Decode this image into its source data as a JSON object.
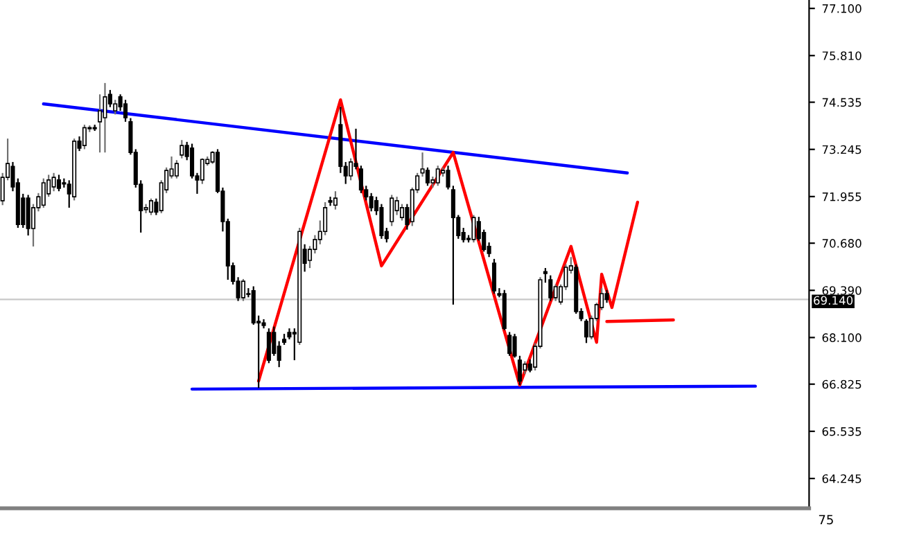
{
  "chart_data": [
    {
      "type": "candlestick",
      "categories": [
        null,
        null,
        null,
        null,
        null,
        null,
        null,
        null,
        null,
        null,
        null,
        null,
        null,
        null,
        null,
        null,
        null,
        null,
        null,
        null,
        null,
        null,
        null,
        null,
        null,
        null,
        null,
        null,
        null,
        null,
        null,
        null,
        null,
        null,
        null,
        null,
        null,
        null,
        null,
        null,
        null,
        null,
        null,
        null,
        null,
        null,
        null,
        null,
        null,
        null,
        null,
        null,
        null,
        null,
        null,
        null,
        null,
        null,
        null,
        null,
        null,
        null,
        null,
        null,
        null,
        null,
        null,
        null,
        null,
        null,
        null,
        null,
        null,
        null,
        null,
        null,
        null,
        null,
        null,
        null,
        null,
        null,
        null,
        null,
        null,
        null,
        null,
        null,
        null,
        null,
        null,
        null,
        null,
        null,
        null,
        null,
        null,
        null,
        null,
        null,
        null,
        null,
        null,
        null,
        null,
        null,
        null,
        null,
        null,
        null,
        null,
        null,
        null,
        null,
        null,
        null,
        null,
        null,
        null,
        null,
        null,
        null,
        null,
        null,
        null,
        null,
        null,
        null,
        null,
        null,
        null,
        null,
        null,
        null,
        null,
        null,
        null,
        null,
        null,
        null,
        null,
        null,
        null,
        null,
        null,
        null,
        null,
        null,
        null,
        null,
        null,
        null,
        null,
        null,
        null,
        null,
        null,
        null
      ],
      "ohlc": [
        [
          71.84,
          72.6,
          71.72,
          72.48
        ],
        [
          72.48,
          73.54,
          72.4,
          72.86
        ],
        [
          72.78,
          72.9,
          72.1,
          72.22
        ],
        [
          72.33,
          72.45,
          71.1,
          71.19
        ],
        [
          71.91,
          72.03,
          71.1,
          71.19
        ],
        [
          71.91,
          72.0,
          70.89,
          71.08
        ],
        [
          71.08,
          71.75,
          70.59,
          71.65
        ],
        [
          71.65,
          72.05,
          71.55,
          71.95
        ],
        [
          71.72,
          72.45,
          71.65,
          72.33
        ],
        [
          72.03,
          72.55,
          71.95,
          72.41
        ],
        [
          72.22,
          72.6,
          72.1,
          72.48
        ],
        [
          72.41,
          72.55,
          72.1,
          72.18
        ],
        [
          72.33,
          72.45,
          72.2,
          72.3
        ],
        [
          72.29,
          72.4,
          71.65,
          72.03
        ],
        [
          71.95,
          73.54,
          71.85,
          73.47
        ],
        [
          73.47,
          73.6,
          73.2,
          73.28
        ],
        [
          73.35,
          73.92,
          73.25,
          73.84
        ],
        [
          73.81,
          73.9,
          73.72,
          73.84
        ],
        [
          73.84,
          73.92,
          73.75,
          73.81
        ],
        [
          74.0,
          74.75,
          73.16,
          74.3
        ],
        [
          74.11,
          75.06,
          73.16,
          74.68
        ],
        [
          74.75,
          74.87,
          74.4,
          74.49
        ],
        [
          74.3,
          74.6,
          74.2,
          74.49
        ],
        [
          74.68,
          74.75,
          74.3,
          74.41
        ],
        [
          74.49,
          74.6,
          74.0,
          74.11
        ],
        [
          74.0,
          74.1,
          73.1,
          73.16
        ],
        [
          73.16,
          73.25,
          72.2,
          72.29
        ],
        [
          72.29,
          72.4,
          70.97,
          71.57
        ],
        [
          71.6,
          71.75,
          71.5,
          71.65
        ],
        [
          71.53,
          71.9,
          71.45,
          71.84
        ],
        [
          71.8,
          71.9,
          71.45,
          71.53
        ],
        [
          71.57,
          72.4,
          71.5,
          72.33
        ],
        [
          72.14,
          72.75,
          72.05,
          72.67
        ],
        [
          72.52,
          73.05,
          72.45,
          72.71
        ],
        [
          72.52,
          72.95,
          72.45,
          72.86
        ],
        [
          73.09,
          73.5,
          73.0,
          73.35
        ],
        [
          73.35,
          73.45,
          72.95,
          73.05
        ],
        [
          73.28,
          73.4,
          72.45,
          72.52
        ],
        [
          72.52,
          72.6,
          72.03,
          72.41
        ],
        [
          72.41,
          73.0,
          72.3,
          72.97
        ],
        [
          72.86,
          73.05,
          72.8,
          72.97
        ],
        [
          72.9,
          73.2,
          72.85,
          73.16
        ],
        [
          73.16,
          73.25,
          72.05,
          72.1
        ],
        [
          72.1,
          72.2,
          71.0,
          71.27
        ],
        [
          71.27,
          71.35,
          69.68,
          70.06
        ],
        [
          70.06,
          70.15,
          69.55,
          69.64
        ],
        [
          69.64,
          69.75,
          69.1,
          69.19
        ],
        [
          69.19,
          69.7,
          69.1,
          69.64
        ],
        [
          69.3,
          69.45,
          69.2,
          69.28
        ],
        [
          69.38,
          69.5,
          68.45,
          68.5
        ],
        [
          68.54,
          68.7,
          66.72,
          68.5
        ],
        [
          68.5,
          68.6,
          68.35,
          68.43
        ],
        [
          68.24,
          68.35,
          67.4,
          67.48
        ],
        [
          68.24,
          68.4,
          67.6,
          67.67
        ],
        [
          67.86,
          68.0,
          67.29,
          67.48
        ],
        [
          68.05,
          68.2,
          67.9,
          67.97
        ],
        [
          68.24,
          68.35,
          68.05,
          68.12
        ],
        [
          68.24,
          68.35,
          67.48,
          68.2
        ],
        [
          67.97,
          71.1,
          67.9,
          71.0
        ],
        [
          70.51,
          70.65,
          69.9,
          70.13
        ],
        [
          70.21,
          70.6,
          70.0,
          70.51
        ],
        [
          70.51,
          70.9,
          70.4,
          70.78
        ],
        [
          70.78,
          71.3,
          70.65,
          71.0
        ],
        [
          71.0,
          71.8,
          70.9,
          71.65
        ],
        [
          71.84,
          71.95,
          71.7,
          71.8
        ],
        [
          71.72,
          72.1,
          71.6,
          71.91
        ],
        [
          73.92,
          74.41,
          72.6,
          72.78
        ],
        [
          72.78,
          72.9,
          72.3,
          72.52
        ],
        [
          72.52,
          73.0,
          72.4,
          72.9
        ],
        [
          72.86,
          73.81,
          72.7,
          72.78
        ],
        [
          72.71,
          72.8,
          72.05,
          72.14
        ],
        [
          72.14,
          72.25,
          71.85,
          71.95
        ],
        [
          71.95,
          72.05,
          71.55,
          71.65
        ],
        [
          71.84,
          71.95,
          71.45,
          71.57
        ],
        [
          71.65,
          71.75,
          70.8,
          70.89
        ],
        [
          71.0,
          71.1,
          70.7,
          70.81
        ],
        [
          71.27,
          72.0,
          71.15,
          71.91
        ],
        [
          71.57,
          71.95,
          71.45,
          71.84
        ],
        [
          71.38,
          71.75,
          71.3,
          71.65
        ],
        [
          71.65,
          71.75,
          71.05,
          71.19
        ],
        [
          71.27,
          72.2,
          71.15,
          72.14
        ],
        [
          72.14,
          72.6,
          72.05,
          72.52
        ],
        [
          72.6,
          73.16,
          72.5,
          72.71
        ],
        [
          72.67,
          72.75,
          72.25,
          72.33
        ],
        [
          72.33,
          72.5,
          72.2,
          72.41
        ],
        [
          72.33,
          72.8,
          72.25,
          72.71
        ],
        [
          72.6,
          72.75,
          72.5,
          72.67
        ],
        [
          72.67,
          72.8,
          72.15,
          72.22
        ],
        [
          72.14,
          72.25,
          69.0,
          71.38
        ],
        [
          71.38,
          71.45,
          70.8,
          70.89
        ],
        [
          70.97,
          71.1,
          70.7,
          70.78
        ],
        [
          70.81,
          70.9,
          70.7,
          70.78
        ],
        [
          70.78,
          71.45,
          70.7,
          71.38
        ],
        [
          71.27,
          71.4,
          70.75,
          70.81
        ],
        [
          70.97,
          71.05,
          70.45,
          70.51
        ],
        [
          70.59,
          70.7,
          70.3,
          70.4
        ],
        [
          70.13,
          70.25,
          69.3,
          69.38
        ],
        [
          69.3,
          69.45,
          69.2,
          69.26
        ],
        [
          69.3,
          69.4,
          68.3,
          68.35
        ],
        [
          68.16,
          68.25,
          67.6,
          67.67
        ],
        [
          68.12,
          68.2,
          67.55,
          67.6
        ],
        [
          67.48,
          67.6,
          66.8,
          66.91
        ],
        [
          67.21,
          67.45,
          67.1,
          67.37
        ],
        [
          67.37,
          67.5,
          67.15,
          67.21
        ],
        [
          67.29,
          67.95,
          67.2,
          67.86
        ],
        [
          67.86,
          69.75,
          67.8,
          69.68
        ],
        [
          69.9,
          70.0,
          69.6,
          69.85
        ],
        [
          69.68,
          69.8,
          69.1,
          69.19
        ],
        [
          69.19,
          69.55,
          69.1,
          69.49
        ],
        [
          69.07,
          69.55,
          69.0,
          69.49
        ],
        [
          69.49,
          70.1,
          69.4,
          70.02
        ],
        [
          69.94,
          70.3,
          69.85,
          70.06
        ],
        [
          70.02,
          70.1,
          68.75,
          68.81
        ],
        [
          68.81,
          68.9,
          68.55,
          68.62
        ],
        [
          68.54,
          68.6,
          67.95,
          68.12
        ],
        [
          68.12,
          68.7,
          68.05,
          68.62
        ],
        [
          68.62,
          69.05,
          68.55,
          69.0
        ],
        [
          68.92,
          69.45,
          68.85,
          69.3
        ],
        [
          69.3,
          69.4,
          69.05,
          69.14
        ],
        null,
        null,
        null,
        null,
        null,
        null,
        null,
        null,
        null,
        null,
        null,
        null,
        null,
        null,
        null,
        null,
        null,
        null,
        null,
        null,
        null,
        null,
        null,
        null,
        null,
        null,
        null,
        null,
        null,
        null,
        null,
        null,
        null,
        null,
        null,
        null,
        null,
        null,
        null
      ],
      "series": [
        {
          "type": "line",
          "color": "#0000ff",
          "values": [
            null,
            null,
            null,
            null,
            null,
            null,
            null,
            null,
            74.49,
            null,
            null,
            null,
            null,
            null,
            null,
            null,
            null,
            null,
            null,
            null,
            null,
            null,
            null,
            null,
            null,
            null,
            null,
            null,
            null,
            null,
            null,
            null,
            null,
            null,
            null,
            null,
            null,
            null,
            null,
            null,
            null,
            null,
            null,
            null,
            null,
            null,
            null,
            null,
            null,
            null,
            null,
            null,
            null,
            null,
            null,
            null,
            null,
            null,
            null,
            null,
            null,
            null,
            null,
            null,
            null,
            null,
            null,
            null,
            null,
            null,
            null,
            null,
            null,
            null,
            null,
            null,
            null,
            null,
            null,
            null,
            null,
            null,
            null,
            null,
            null,
            null,
            null,
            null,
            null,
            null,
            null,
            null,
            null,
            null,
            null,
            null,
            null,
            null,
            null,
            null,
            null,
            null,
            null,
            null,
            null,
            null,
            null,
            null,
            null,
            null,
            null,
            null,
            null,
            null,
            null,
            null,
            null,
            null,
            null,
            null,
            null,
            null,
            72.6,
            null,
            null,
            null,
            null,
            null,
            null,
            null,
            null,
            null,
            null,
            null,
            null,
            null,
            null,
            null,
            null,
            null,
            null,
            null,
            null,
            null,
            null,
            null,
            null,
            null,
            null,
            null,
            null,
            null,
            null,
            null,
            null,
            null,
            null,
            null
          ]
        },
        {
          "type": "line",
          "color": "#0000ff",
          "values": [
            null,
            null,
            null,
            null,
            null,
            null,
            null,
            null,
            null,
            null,
            null,
            null,
            null,
            null,
            null,
            null,
            null,
            null,
            null,
            null,
            null,
            null,
            null,
            null,
            null,
            null,
            null,
            null,
            null,
            null,
            null,
            null,
            null,
            null,
            null,
            null,
            null,
            66.69,
            null,
            null,
            null,
            null,
            null,
            null,
            null,
            null,
            null,
            null,
            null,
            null,
            null,
            null,
            null,
            null,
            null,
            null,
            null,
            null,
            null,
            null,
            null,
            null,
            null,
            null,
            null,
            null,
            null,
            null,
            null,
            null,
            null,
            null,
            null,
            null,
            null,
            null,
            null,
            null,
            null,
            null,
            null,
            null,
            null,
            null,
            null,
            null,
            null,
            null,
            null,
            null,
            null,
            null,
            null,
            null,
            null,
            null,
            null,
            null,
            null,
            null,
            null,
            null,
            null,
            null,
            null,
            null,
            null,
            null,
            null,
            null,
            null,
            null,
            null,
            null,
            null,
            null,
            null,
            null,
            null,
            null,
            null,
            null,
            null,
            null,
            null,
            null,
            null,
            null,
            null,
            null,
            null,
            null,
            null,
            null,
            null,
            null,
            null,
            null,
            null,
            null,
            null,
            null,
            null,
            null,
            null,
            null,
            null,
            66.77,
            null,
            null,
            null,
            null,
            null,
            null,
            null,
            null,
            null,
            null
          ]
        },
        {
          "type": "line",
          "color": "#ff0000",
          "values": [
            null,
            null,
            null,
            null,
            null,
            null,
            null,
            null,
            null,
            null,
            null,
            null,
            null,
            null,
            null,
            null,
            null,
            null,
            null,
            null,
            null,
            null,
            null,
            null,
            null,
            null,
            null,
            null,
            null,
            null,
            null,
            null,
            null,
            null,
            null,
            null,
            null,
            null,
            null,
            null,
            null,
            null,
            null,
            null,
            null,
            null,
            null,
            null,
            null,
            null,
            66.91,
            null,
            null,
            null,
            null,
            null,
            null,
            null,
            null,
            null,
            null,
            null,
            null,
            null,
            null,
            null,
            74.6,
            null,
            null,
            null,
            null,
            null,
            null,
            null,
            70.06,
            null,
            null,
            null,
            null,
            null,
            null,
            null,
            null,
            null,
            null,
            null,
            null,
            null,
            73.16,
            null,
            null,
            null,
            null,
            null,
            null,
            null,
            null,
            null,
            null,
            null,
            null,
            66.8,
            null,
            null,
            null,
            null,
            null,
            null,
            null,
            null,
            null,
            70.59,
            null,
            null,
            null,
            null,
            67.97,
            69.83,
            null,
            68.92,
            null,
            null,
            null,
            null,
            71.8,
            null,
            null,
            null,
            null,
            null,
            null,
            null,
            null,
            null,
            null,
            null,
            null,
            null,
            null,
            null,
            null,
            null,
            null,
            null,
            null,
            null,
            null,
            null,
            null,
            null,
            null,
            null,
            null,
            null,
            null,
            null,
            null,
            null
          ]
        },
        {
          "type": "line",
          "color": "#ff0000",
          "values": [
            null,
            null,
            null,
            null,
            null,
            null,
            null,
            null,
            null,
            null,
            null,
            null,
            null,
            null,
            null,
            null,
            null,
            null,
            null,
            null,
            null,
            null,
            null,
            null,
            null,
            null,
            null,
            null,
            null,
            null,
            null,
            null,
            null,
            null,
            null,
            null,
            null,
            null,
            null,
            null,
            null,
            null,
            null,
            null,
            null,
            null,
            null,
            null,
            null,
            null,
            null,
            null,
            null,
            null,
            null,
            null,
            null,
            null,
            null,
            null,
            null,
            null,
            null,
            null,
            null,
            null,
            null,
            null,
            null,
            null,
            null,
            null,
            null,
            null,
            null,
            null,
            null,
            null,
            null,
            null,
            null,
            null,
            null,
            null,
            null,
            null,
            null,
            null,
            null,
            null,
            null,
            null,
            null,
            null,
            null,
            null,
            null,
            null,
            null,
            null,
            null,
            null,
            null,
            null,
            null,
            null,
            null,
            null,
            null,
            null,
            null,
            null,
            null,
            null,
            null,
            null,
            null,
            null,
            68.54,
            null,
            null,
            null,
            null,
            null,
            null,
            null,
            null,
            null,
            null,
            null,
            null,
            68.58,
            null,
            null,
            null,
            null,
            null,
            null,
            null,
            null,
            null,
            null,
            null,
            null,
            null,
            null,
            null,
            null,
            null,
            null,
            null,
            null,
            null,
            null,
            null,
            null,
            null,
            null
          ]
        }
      ],
      "ylim": [
        63.43,
        77.33
      ],
      "yticks": [
        {
          "value": 77.1,
          "label": "77.100"
        },
        {
          "value": 75.81,
          "label": "75.810"
        },
        {
          "value": 74.535,
          "label": "74.535"
        },
        {
          "value": 73.245,
          "label": "73.245"
        },
        {
          "value": 71.955,
          "label": "71.955"
        },
        {
          "value": 70.68,
          "label": "70.680"
        },
        {
          "value": 69.39,
          "label": "69.390"
        },
        {
          "value": 68.1,
          "label": "68.100"
        },
        {
          "value": 66.825,
          "label": "66.825"
        },
        {
          "value": 65.535,
          "label": "65.535"
        },
        {
          "value": 64.245,
          "label": "64.245"
        }
      ],
      "ref_lines": [
        {
          "axis": "y",
          "value": 69.14,
          "label": "69.140",
          "color": "#c8c8c8"
        }
      ],
      "tick_labels": "y"
    },
    {
      "type": "other",
      "annotations": [
        "75"
      ]
    }
  ]
}
